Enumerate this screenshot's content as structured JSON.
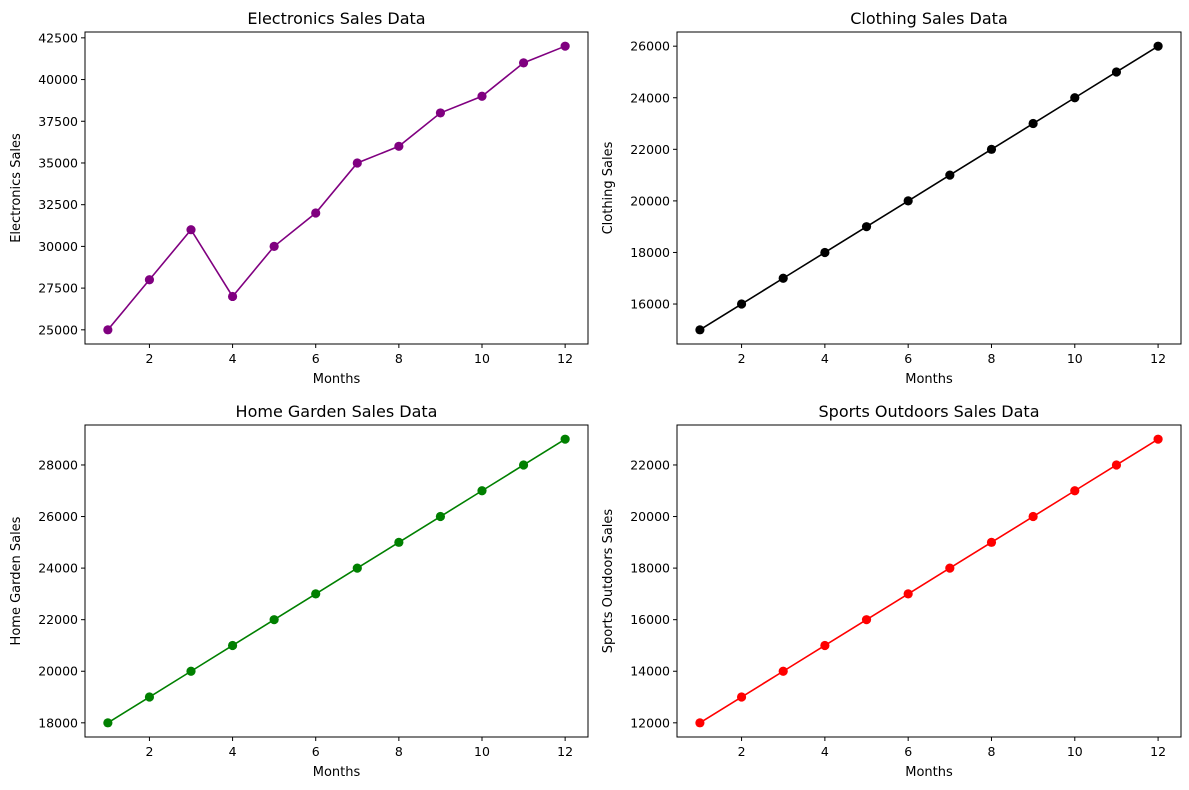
{
  "chart_data": [
    {
      "type": "line",
      "title": "Electronics Sales Data",
      "xlabel": "Months",
      "ylabel": "Electronics Sales",
      "color": "#800080",
      "marker": "circle",
      "x": [
        1,
        2,
        3,
        4,
        5,
        6,
        7,
        8,
        9,
        10,
        11,
        12
      ],
      "values": [
        25000,
        28000,
        31000,
        27000,
        30000,
        32000,
        35000,
        36000,
        38000,
        39000,
        41000,
        42000
      ],
      "xlim": [
        0.45,
        12.55
      ],
      "ylim": [
        24150,
        42850
      ],
      "xticks": [
        2,
        4,
        6,
        8,
        10,
        12
      ],
      "yticks": [
        25000,
        27500,
        30000,
        32500,
        35000,
        37500,
        40000,
        42500
      ],
      "grid": false
    },
    {
      "type": "line",
      "title": "Clothing Sales Data",
      "xlabel": "Months",
      "ylabel": "Clothing Sales",
      "color": "#000000",
      "marker": "circle",
      "x": [
        1,
        2,
        3,
        4,
        5,
        6,
        7,
        8,
        9,
        10,
        11,
        12
      ],
      "values": [
        15000,
        16000,
        17000,
        18000,
        19000,
        20000,
        21000,
        22000,
        23000,
        24000,
        25000,
        26000
      ],
      "xlim": [
        0.45,
        12.55
      ],
      "ylim": [
        14450,
        26550
      ],
      "xticks": [
        2,
        4,
        6,
        8,
        10,
        12
      ],
      "yticks": [
        16000,
        18000,
        20000,
        22000,
        24000,
        26000
      ],
      "grid": false
    },
    {
      "type": "line",
      "title": "Home Garden Sales Data",
      "xlabel": "Months",
      "ylabel": "Home Garden Sales",
      "color": "#008000",
      "marker": "circle",
      "x": [
        1,
        2,
        3,
        4,
        5,
        6,
        7,
        8,
        9,
        10,
        11,
        12
      ],
      "values": [
        18000,
        19000,
        20000,
        21000,
        22000,
        23000,
        24000,
        25000,
        26000,
        27000,
        28000,
        29000
      ],
      "xlim": [
        0.45,
        12.55
      ],
      "ylim": [
        17450,
        29550
      ],
      "xticks": [
        2,
        4,
        6,
        8,
        10,
        12
      ],
      "yticks": [
        18000,
        20000,
        22000,
        24000,
        26000,
        28000
      ],
      "grid": false
    },
    {
      "type": "line",
      "title": "Sports Outdoors Sales Data",
      "xlabel": "Months",
      "ylabel": "Sports Outdoors Sales",
      "color": "#ff0000",
      "marker": "circle",
      "x": [
        1,
        2,
        3,
        4,
        5,
        6,
        7,
        8,
        9,
        10,
        11,
        12
      ],
      "values": [
        12000,
        13000,
        14000,
        15000,
        16000,
        17000,
        18000,
        19000,
        20000,
        21000,
        22000,
        23000
      ],
      "xlim": [
        0.45,
        12.55
      ],
      "ylim": [
        11450,
        23550
      ],
      "xticks": [
        2,
        4,
        6,
        8,
        10,
        12
      ],
      "yticks": [
        12000,
        14000,
        16000,
        18000,
        20000,
        22000
      ],
      "grid": false
    }
  ]
}
